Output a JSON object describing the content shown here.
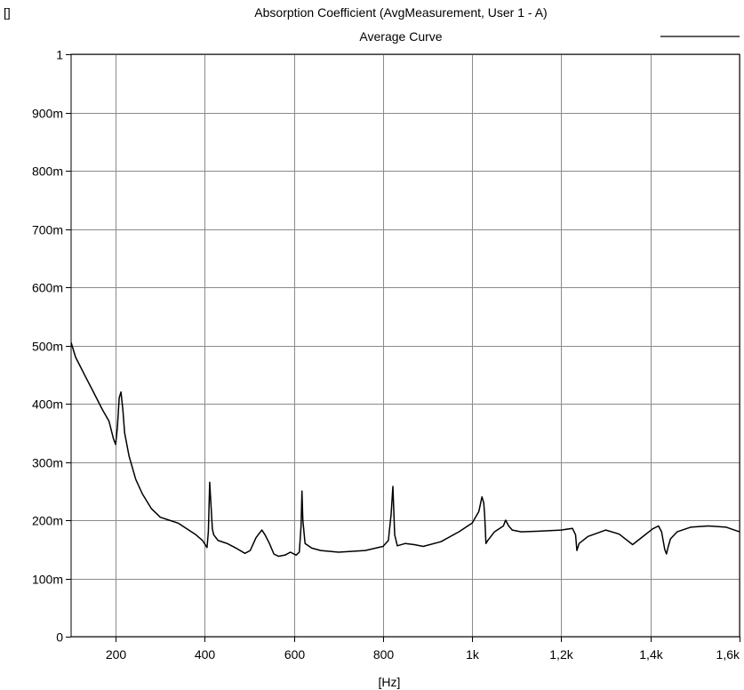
{
  "chart_data": {
    "type": "line",
    "title": "Absorption Coefficient (AvgMeasurement, User 1 - A)",
    "unit_label": "[]",
    "xlabel": "[Hz]",
    "ylabel": "",
    "xlim": [
      100,
      1600
    ],
    "ylim": [
      0,
      1
    ],
    "grid": true,
    "legend": "top-right",
    "x_ticks": [
      {
        "value": 200,
        "label": "200"
      },
      {
        "value": 400,
        "label": "400"
      },
      {
        "value": 600,
        "label": "600"
      },
      {
        "value": 800,
        "label": "800"
      },
      {
        "value": 1000,
        "label": "1k"
      },
      {
        "value": 1200,
        "label": "1,2k"
      },
      {
        "value": 1400,
        "label": "1,4k"
      },
      {
        "value": 1600,
        "label": "1,6k"
      }
    ],
    "y_ticks": [
      {
        "value": 0,
        "label": "0"
      },
      {
        "value": 0.1,
        "label": "100m"
      },
      {
        "value": 0.2,
        "label": "200m"
      },
      {
        "value": 0.3,
        "label": "300m"
      },
      {
        "value": 0.4,
        "label": "400m"
      },
      {
        "value": 0.5,
        "label": "500m"
      },
      {
        "value": 0.6,
        "label": "600m"
      },
      {
        "value": 0.7,
        "label": "700m"
      },
      {
        "value": 0.8,
        "label": "800m"
      },
      {
        "value": 0.9,
        "label": "900m"
      },
      {
        "value": 1,
        "label": "1"
      }
    ],
    "series": [
      {
        "name": "Average Curve",
        "color": "#000000",
        "x": [
          100,
          110,
          130,
          150,
          170,
          185,
          195,
          200,
          204,
          208,
          212,
          216,
          220,
          230,
          245,
          260,
          280,
          300,
          320,
          340,
          360,
          380,
          395,
          405,
          408,
          411,
          414,
          417,
          420,
          430,
          450,
          470,
          490,
          502,
          515,
          528,
          535,
          545,
          555,
          565,
          580,
          592,
          605,
          612,
          616,
          618,
          620,
          625,
          640,
          660,
          700,
          760,
          800,
          812,
          818,
          822,
          826,
          832,
          850,
          870,
          890,
          930,
          970,
          1000,
          1015,
          1022,
          1026,
          1028,
          1031,
          1035,
          1050,
          1070,
          1075,
          1082,
          1090,
          1110,
          1150,
          1200,
          1225,
          1232,
          1235,
          1240,
          1260,
          1300,
          1330,
          1360,
          1380,
          1405,
          1418,
          1425,
          1432,
          1436,
          1440,
          1445,
          1460,
          1490,
          1530,
          1570,
          1600
        ],
        "y": [
          0.505,
          0.48,
          0.45,
          0.42,
          0.39,
          0.37,
          0.34,
          0.33,
          0.36,
          0.41,
          0.42,
          0.39,
          0.35,
          0.31,
          0.27,
          0.245,
          0.22,
          0.205,
          0.2,
          0.195,
          0.185,
          0.175,
          0.165,
          0.153,
          0.18,
          0.265,
          0.225,
          0.185,
          0.175,
          0.165,
          0.16,
          0.152,
          0.143,
          0.148,
          0.17,
          0.183,
          0.175,
          0.16,
          0.142,
          0.138,
          0.14,
          0.145,
          0.14,
          0.145,
          0.19,
          0.25,
          0.2,
          0.16,
          0.152,
          0.148,
          0.145,
          0.148,
          0.155,
          0.165,
          0.21,
          0.258,
          0.175,
          0.156,
          0.16,
          0.158,
          0.155,
          0.163,
          0.18,
          0.195,
          0.215,
          0.24,
          0.23,
          0.21,
          0.16,
          0.165,
          0.18,
          0.19,
          0.2,
          0.19,
          0.183,
          0.18,
          0.181,
          0.183,
          0.186,
          0.175,
          0.148,
          0.16,
          0.172,
          0.183,
          0.176,
          0.158,
          0.17,
          0.185,
          0.19,
          0.18,
          0.15,
          0.142,
          0.155,
          0.168,
          0.18,
          0.188,
          0.19,
          0.188,
          0.18
        ]
      }
    ]
  }
}
